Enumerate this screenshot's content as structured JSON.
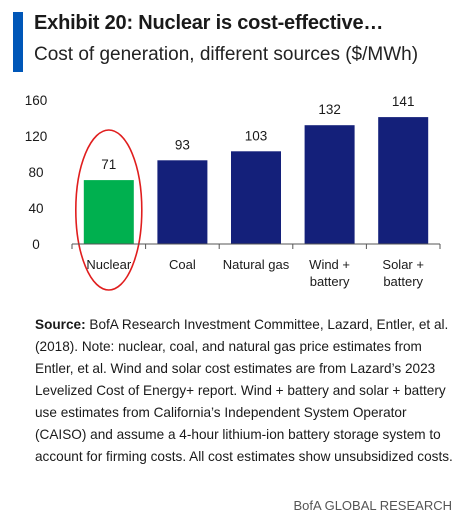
{
  "header": {
    "title": "Exhibit 20: Nuclear is cost-effective…",
    "subtitle": "Cost of generation, different sources ($/MWh)"
  },
  "colors": {
    "accent": "#0057b8",
    "bar_default": "#14207a",
    "bar_highlight": "#00b04f",
    "highlight_ring": "#e01e1e"
  },
  "chart_data": {
    "type": "bar",
    "categories": [
      "Nuclear",
      "Coal",
      "Natural gas",
      "Wind + battery",
      "Solar + battery"
    ],
    "category_lines": [
      [
        "Nuclear"
      ],
      [
        "Coal"
      ],
      [
        "Natural gas"
      ],
      [
        "Wind +",
        "battery"
      ],
      [
        "Solar +",
        "battery"
      ]
    ],
    "values": [
      71,
      93,
      103,
      132,
      141
    ],
    "data_labels": [
      "71",
      "93",
      "103",
      "132",
      "141"
    ],
    "highlighted_category": "Nuclear",
    "ylim": [
      0,
      160
    ],
    "yticks": [
      0,
      40,
      80,
      120,
      160
    ],
    "grid": false,
    "title": "",
    "xlabel": "",
    "ylabel": ""
  },
  "footer": {
    "note_label": "Source:",
    "note_text": "BofA Research Investment Committee, Lazard, Entler, et al. (2018). Note: nuclear, coal, and natural gas price estimates from Entler, et al. Wind and solar cost estimates are from Lazard’s 2023 Levelized Cost of Energy+ report. Wind + battery and solar + battery use estimates from California’s Independent System Operator (CAISO) and assume a 4-hour lithium-ion battery storage system to account for firming costs. All cost estimates show unsubsidized costs.",
    "credit": "BofA GLOBAL RESEARCH"
  }
}
